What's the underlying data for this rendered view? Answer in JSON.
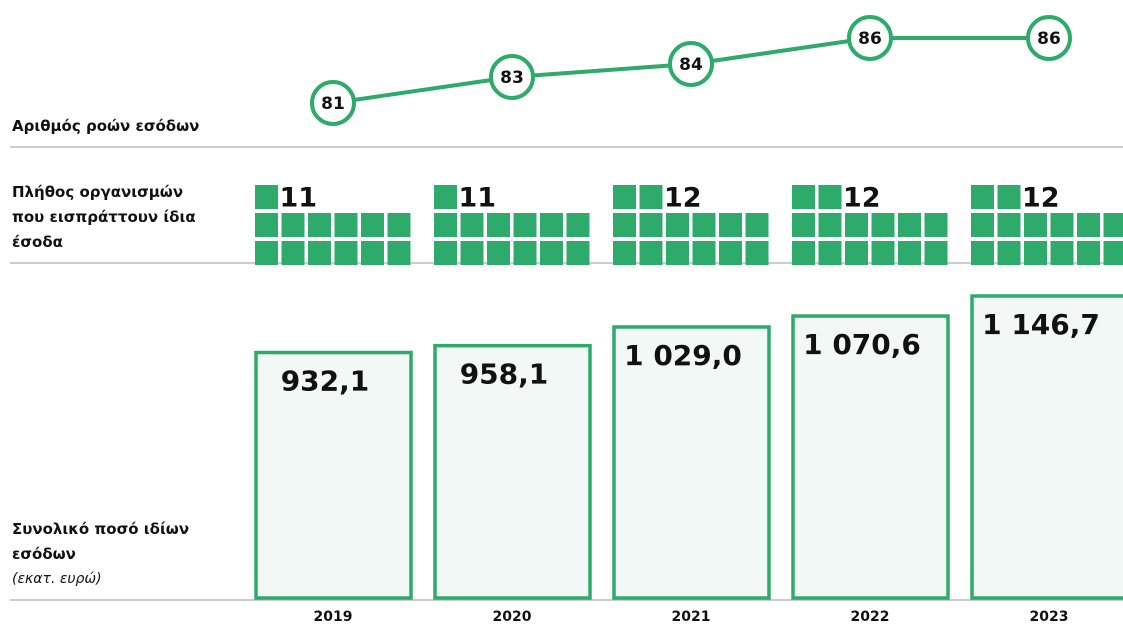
{
  "chart_data": [
    {
      "type": "line",
      "label": "Αριθμός ροών εσόδων",
      "values": [
        81,
        83,
        84,
        86,
        86
      ],
      "color": "#2eaa6a"
    },
    {
      "type": "waffle",
      "label": "Πλήθος οργανισμών που εισπράττουν ίδια έσοδα",
      "values": [
        11,
        11,
        12,
        12,
        12
      ],
      "color": "#2eaa6a"
    },
    {
      "type": "bar",
      "label": "Συνολικό ποσό ιδίων εσόδων",
      "sublabel": "(εκατ. ευρώ)",
      "categories": [
        "2019",
        "2020",
        "2021",
        "2022",
        "2023"
      ],
      "values": [
        932.1,
        958.1,
        1029.0,
        1070.6,
        1146.7
      ],
      "value_labels": [
        "932,1",
        "958,1",
        "1 029,0",
        "1 070,6",
        "1 146,7"
      ],
      "color": "#2eaa6a",
      "fill": "#f2f8f5"
    }
  ]
}
